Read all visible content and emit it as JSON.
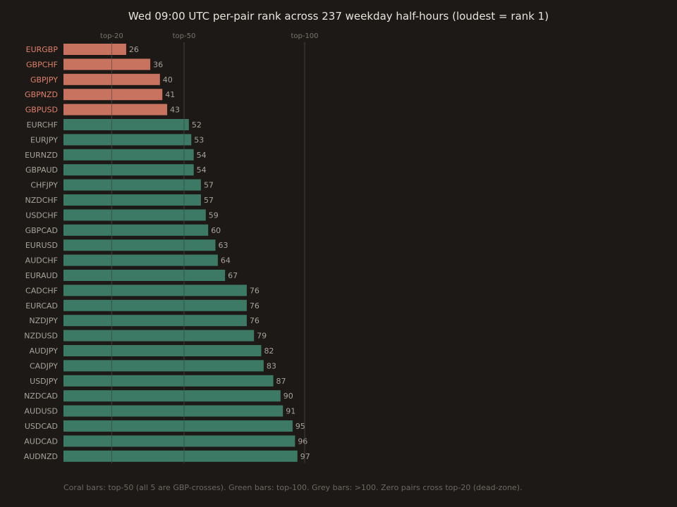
{
  "chart_data": {
    "type": "bar",
    "orientation": "horizontal",
    "title": "Wed 09:00 UTC per-pair rank across 237 weekday half-hours (loudest = rank 1)",
    "footnote": "Coral bars: top-50 (all 5 are GBP-crosses). Green bars: top-100. Grey bars: >100. Zero pairs cross top-20 (dead-zone).",
    "categories": [
      "EURGBP",
      "GBPCHF",
      "GBPJPY",
      "GBPNZD",
      "GBPUSD",
      "EURCHF",
      "EURJPY",
      "EURNZD",
      "GBPAUD",
      "CHFJPY",
      "NZDCHF",
      "USDCHF",
      "GBPCAD",
      "EURUSD",
      "AUDCHF",
      "EURAUD",
      "CADCHF",
      "EURCAD",
      "NZDJPY",
      "NZDUSD",
      "AUDJPY",
      "CADJPY",
      "USDJPY",
      "NZDCAD",
      "AUDUSD",
      "USDCAD",
      "AUDCAD",
      "AUDNZD"
    ],
    "values": [
      26,
      36,
      40,
      41,
      43,
      52,
      53,
      54,
      54,
      57,
      57,
      59,
      60,
      63,
      64,
      67,
      76,
      76,
      76,
      79,
      82,
      83,
      87,
      90,
      91,
      95,
      96,
      97
    ],
    "reference_lines": [
      {
        "label": "top-20",
        "value": 20
      },
      {
        "label": "top-50",
        "value": 50
      },
      {
        "label": "top-100",
        "value": 100
      }
    ],
    "xlim": [
      0,
      100
    ],
    "colors": {
      "top50": "#c8735f",
      "top100": "#3d7a65",
      "label_top50": "#e0806a",
      "label_default": "#a8a299",
      "ref_line": "#4e4944"
    },
    "grid": false,
    "legend": "none"
  }
}
